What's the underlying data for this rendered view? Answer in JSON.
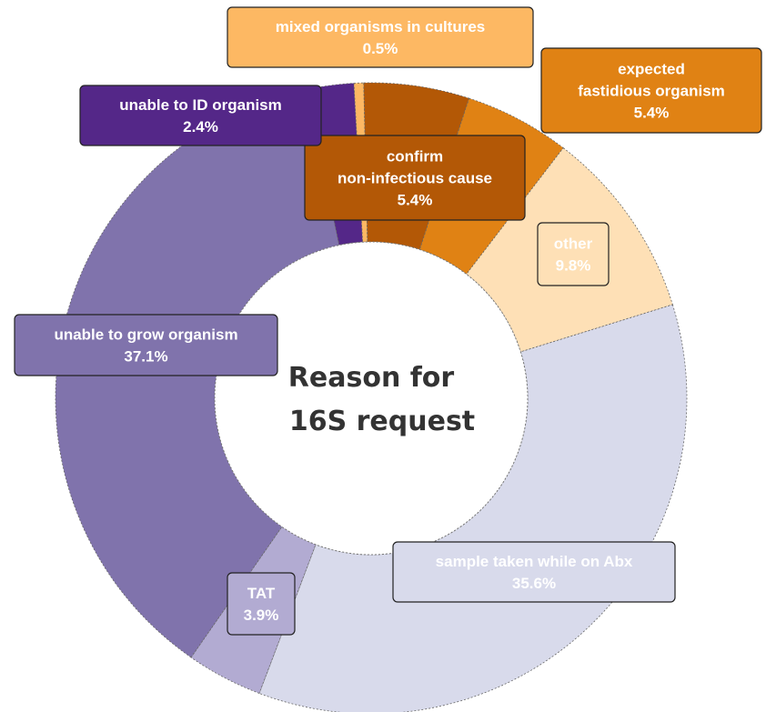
{
  "chart_data": {
    "type": "pie",
    "subtype": "donut",
    "title": "Reason for 16S request",
    "title_lines": [
      "Reason for",
      "16S request"
    ],
    "slices": [
      {
        "key": "mixed",
        "lines": [
          "mixed organisms in cultures"
        ],
        "pct_label": "0.5%",
        "value": 0.5,
        "color": "#fdb863",
        "text_color": "#ffffff"
      },
      {
        "key": "confirm",
        "lines": [
          "confirm",
          "non-infectious cause"
        ],
        "pct_label": "5.4%",
        "value": 5.4,
        "color": "#b35806",
        "text_color": "#ffffff"
      },
      {
        "key": "fastidious",
        "lines": [
          "expected",
          "fastidious organism"
        ],
        "pct_label": "5.4%",
        "value": 5.4,
        "color": "#e08214",
        "text_color": "#ffffff"
      },
      {
        "key": "other",
        "lines": [
          "other"
        ],
        "pct_label": "9.8%",
        "value": 9.8,
        "color": "#fee0b6",
        "text_color": "#ffffff"
      },
      {
        "key": "abx",
        "lines": [
          "sample taken while on Abx"
        ],
        "pct_label": "35.6%",
        "value": 35.6,
        "color": "#d8daeb",
        "text_color": "#ffffff"
      },
      {
        "key": "tat",
        "lines": [
          "TAT"
        ],
        "pct_label": "3.9%",
        "value": 3.9,
        "color": "#b2abd2",
        "text_color": "#ffffff"
      },
      {
        "key": "grow",
        "lines": [
          "unable to grow organism"
        ],
        "pct_label": "37.1%",
        "value": 37.1,
        "color": "#8073ac",
        "text_color": "#ffffff"
      },
      {
        "key": "id",
        "lines": [
          "unable to ID organism"
        ],
        "pct_label": "2.4%",
        "value": 2.4,
        "color": "#542788",
        "text_color": "#ffffff"
      }
    ]
  }
}
